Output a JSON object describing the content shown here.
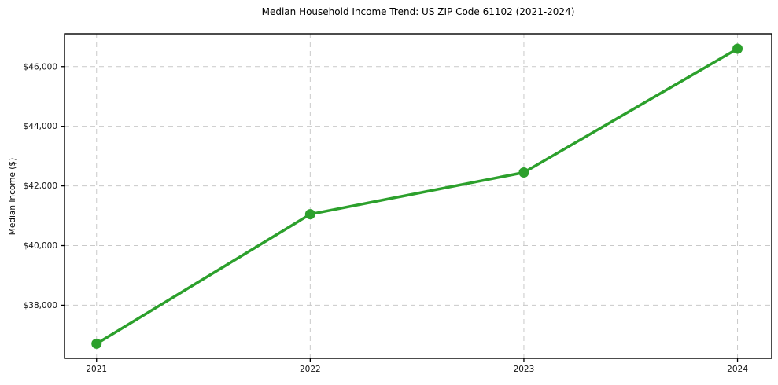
{
  "chart_data": {
    "type": "line",
    "title": "Median Household Income Trend: US ZIP Code 61102 (2021-2024)",
    "xlabel": "",
    "ylabel": "Median Income ($)",
    "categories": [
      "2021",
      "2022",
      "2023",
      "2024"
    ],
    "x": [
      2021,
      2022,
      2023,
      2024
    ],
    "values": [
      36710,
      41050,
      42450,
      46600
    ],
    "y_ticks": [
      38000,
      40000,
      42000,
      44000,
      46000
    ],
    "y_tick_labels": [
      "$38,000",
      "$40,000",
      "$42,000",
      "$44,000",
      "$46,000"
    ],
    "x_tick_labels": [
      "2021",
      "2022",
      "2023",
      "2024"
    ],
    "xlim": [
      2020.85,
      2024.16
    ],
    "ylim": [
      36220,
      47100
    ],
    "grid": true,
    "grid_style": "dashed",
    "legend": false,
    "line_color": "#2ca02c",
    "marker": "circle",
    "grid_color": "#c9c9c9",
    "spine_color": "#000000",
    "text_color": "#141414",
    "background_color": "#ffffff"
  }
}
